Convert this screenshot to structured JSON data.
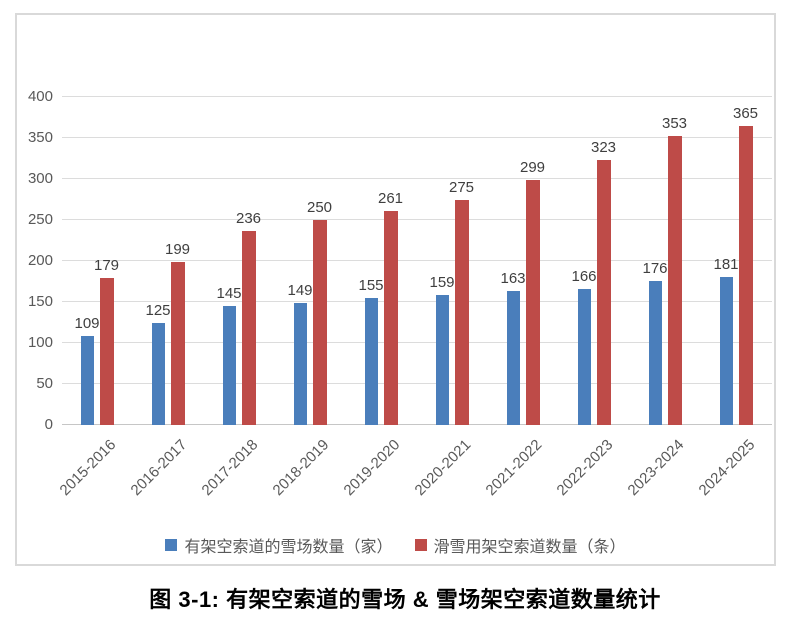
{
  "figure": {
    "caption": "图 3-1: 有架空索道的雪场 & 雪场架空索道数量统计"
  },
  "chart_data": {
    "type": "bar",
    "title": "",
    "xlabel": "",
    "ylabel": "",
    "categories": [
      "2015-2016",
      "2016-2017",
      "2017-2018",
      "2018-2019",
      "2019-2020",
      "2020-2021",
      "2021-2022",
      "2022-2023",
      "2023-2024",
      "2024-2025"
    ],
    "series": [
      {
        "name": "有架空索道的雪场数量（家）",
        "color": "#4A7EBB",
        "values": [
          109,
          125,
          145,
          149,
          155,
          159,
          163,
          166,
          176,
          181
        ]
      },
      {
        "name": "滑雪用架空索道数量（条）",
        "color": "#BE4B48",
        "values": [
          179,
          199,
          236,
          250,
          261,
          275,
          299,
          323,
          353,
          365
        ]
      }
    ],
    "ylim": [
      0,
      400
    ],
    "yticks": [
      0,
      50,
      100,
      150,
      200,
      250,
      300,
      350,
      400
    ],
    "grid": true,
    "data_labels": true,
    "legend_position": "bottom",
    "colors": {
      "gridline": "#dcdcdc",
      "axis_line": "#c6c6c6",
      "tick_text": "#595959",
      "data_label_text": "#3f3f3f"
    }
  }
}
